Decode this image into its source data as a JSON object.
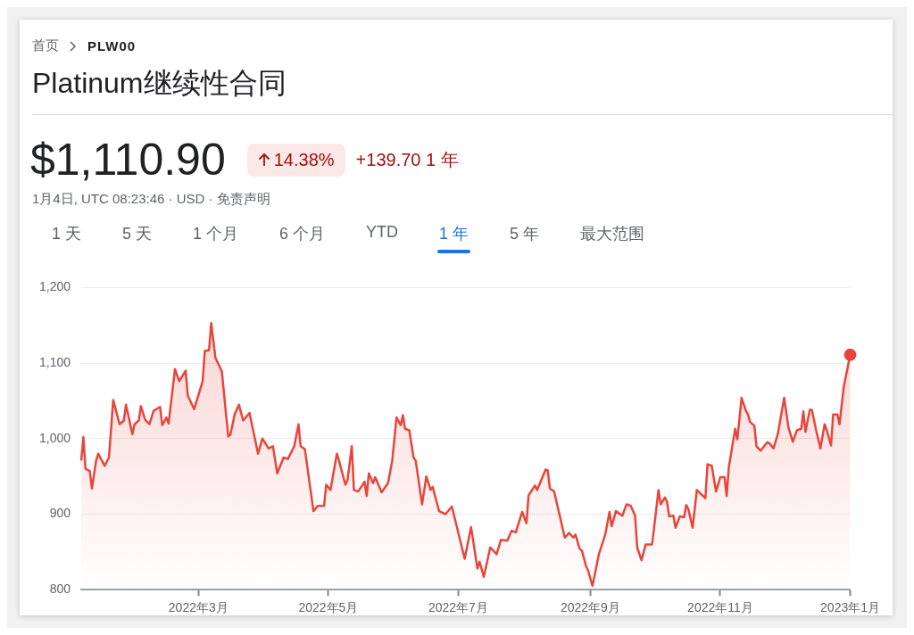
{
  "chart_data": {
    "type": "area",
    "title": "Platinum继续性合同",
    "annotations": [
      "首页",
      "PLW00",
      "$1,110.90",
      "14.38%",
      "+139.70 1 年",
      "1月4日, UTC 08:23:46 · USD · 免责声明",
      "1 天",
      "5 天",
      "1 个月",
      "6 个月",
      "YTD",
      "1 年",
      "5 年",
      "最大范围"
    ],
    "xlim": [
      "2022-01-05",
      "2023-01-01"
    ],
    "xticks": [
      {
        "value": "2022-03-01",
        "label": "2022年3月"
      },
      {
        "value": "2022-05-01",
        "label": "2022年5月"
      },
      {
        "value": "2022-07-01",
        "label": "2022年7月"
      },
      {
        "value": "2022-09-01",
        "label": "2022年9月"
      },
      {
        "value": "2022-11-01",
        "label": "2022年11月"
      },
      {
        "value": "2023-01-01",
        "label": "2023年1月"
      }
    ],
    "ylim": [
      800,
      1200
    ],
    "yticks": [
      {
        "value": 800,
        "label": "800"
      },
      {
        "value": 900,
        "label": "900"
      },
      {
        "value": 1000,
        "label": "1,000"
      },
      {
        "value": 1100,
        "label": "1,100"
      },
      {
        "value": 1200,
        "label": "1,200"
      }
    ],
    "grid": "y",
    "legend": false,
    "series": [
      {
        "color": "#e8453c",
        "x": [
          "2022-01-05",
          "2022-01-06",
          "2022-01-07",
          "2022-01-09",
          "2022-01-10",
          "2022-01-12",
          "2022-01-13",
          "2022-01-16",
          "2022-01-18",
          "2022-01-20",
          "2022-01-23",
          "2022-01-25",
          "2022-01-26",
          "2022-01-29",
          "2022-01-30",
          "2022-02-01",
          "2022-02-02",
          "2022-02-04",
          "2022-02-06",
          "2022-02-08",
          "2022-02-11",
          "2022-02-12",
          "2022-02-14",
          "2022-02-15",
          "2022-02-18",
          "2022-02-20",
          "2022-02-23",
          "2022-02-24",
          "2022-02-27",
          "2022-03-03",
          "2022-03-04",
          "2022-03-06",
          "2022-03-07",
          "2022-03-09",
          "2022-03-12",
          "2022-03-15",
          "2022-03-16",
          "2022-03-18",
          "2022-03-20",
          "2022-03-22",
          "2022-03-25",
          "2022-03-29",
          "2022-03-31",
          "2022-04-03",
          "2022-04-05",
          "2022-04-07",
          "2022-04-10",
          "2022-04-12",
          "2022-04-15",
          "2022-04-17",
          "2022-04-18",
          "2022-04-20",
          "2022-04-24",
          "2022-04-26",
          "2022-04-29",
          "2022-04-30",
          "2022-05-02",
          "2022-05-05",
          "2022-05-06",
          "2022-05-09",
          "2022-05-10",
          "2022-05-12",
          "2022-05-13",
          "2022-05-15",
          "2022-05-18",
          "2022-05-19",
          "2022-05-20",
          "2022-05-22",
          "2022-05-23",
          "2022-05-26",
          "2022-05-29",
          "2022-05-31",
          "2022-06-02",
          "2022-06-04",
          "2022-06-05",
          "2022-06-06",
          "2022-06-08",
          "2022-06-10",
          "2022-06-11",
          "2022-06-14",
          "2022-06-16",
          "2022-06-18",
          "2022-06-19",
          "2022-06-22",
          "2022-06-25",
          "2022-06-28",
          "2022-07-04",
          "2022-07-07",
          "2022-07-10",
          "2022-07-11",
          "2022-07-13",
          "2022-07-16",
          "2022-07-19",
          "2022-07-21",
          "2022-07-24",
          "2022-07-26",
          "2022-07-28",
          "2022-07-31",
          "2022-08-02",
          "2022-08-03",
          "2022-08-06",
          "2022-08-07",
          "2022-08-11",
          "2022-08-12",
          "2022-08-13",
          "2022-08-15",
          "2022-08-20",
          "2022-08-22",
          "2022-08-24",
          "2022-08-25",
          "2022-08-27",
          "2022-08-28",
          "2022-08-30",
          "2022-08-31",
          "2022-09-02",
          "2022-09-05",
          "2022-09-08",
          "2022-09-10",
          "2022-09-11",
          "2022-09-13",
          "2022-09-16",
          "2022-09-18",
          "2022-09-20",
          "2022-09-22",
          "2022-09-23",
          "2022-09-25",
          "2022-09-27",
          "2022-09-30",
          "2022-10-03",
          "2022-10-04",
          "2022-10-06",
          "2022-10-07",
          "2022-10-08",
          "2022-10-10",
          "2022-10-11",
          "2022-10-13",
          "2022-10-15",
          "2022-10-16",
          "2022-10-17",
          "2022-10-19",
          "2022-10-21",
          "2022-10-25",
          "2022-10-26",
          "2022-10-28",
          "2022-10-30",
          "2022-11-01",
          "2022-11-03",
          "2022-11-04",
          "2022-11-05",
          "2022-11-08",
          "2022-11-09",
          "2022-11-11",
          "2022-11-13",
          "2022-11-14",
          "2022-11-15",
          "2022-11-17",
          "2022-11-18",
          "2022-11-20",
          "2022-11-23",
          "2022-11-24",
          "2022-11-26",
          "2022-11-28",
          "2022-12-01",
          "2022-12-03",
          "2022-12-05",
          "2022-12-07",
          "2022-12-09",
          "2022-12-10",
          "2022-12-11",
          "2022-12-13",
          "2022-12-14",
          "2022-12-16",
          "2022-12-18",
          "2022-12-20",
          "2022-12-21",
          "2022-12-23",
          "2022-12-24",
          "2022-12-26",
          "2022-12-27",
          "2022-12-29",
          "2022-12-30",
          "2023-01-01"
        ],
        "values": [
          971,
          1002,
          960,
          957,
          934,
          971,
          980,
          964,
          975,
          1051,
          1019,
          1024,
          1045,
          1006,
          1019,
          1024,
          1043,
          1025,
          1019,
          1037,
          1042,
          1018,
          1028,
          1020,
          1092,
          1076,
          1090,
          1057,
          1039,
          1076,
          1116,
          1117,
          1153,
          1107,
          1089,
          1003,
          1005,
          1032,
          1045,
          1024,
          1034,
          980,
          1000,
          987,
          990,
          954,
          975,
          973,
          990,
          1019,
          990,
          986,
          904,
          911,
          911,
          939,
          932,
          980,
          971,
          939,
          945,
          990,
          932,
          930,
          943,
          924,
          954,
          941,
          949,
          929,
          941,
          971,
          1028,
          1018,
          1031,
          1013,
          1011,
          975,
          971,
          913,
          950,
          932,
          936,
          904,
          900,
          910,
          841,
          883,
          828,
          837,
          817,
          856,
          847,
          866,
          865,
          878,
          876,
          903,
          888,
          925,
          938,
          932,
          959,
          958,
          934,
          930,
          869,
          875,
          869,
          873,
          854,
          852,
          831,
          825,
          805,
          847,
          873,
          903,
          884,
          904,
          898,
          913,
          911,
          898,
          856,
          839,
          860,
          860,
          932,
          913,
          922,
          917,
          897,
          898,
          882,
          897,
          896,
          912,
          907,
          882,
          932,
          921,
          966,
          964,
          930,
          949,
          949,
          924,
          962,
          1013,
          999,
          1054,
          1037,
          1032,
          1022,
          1017,
          990,
          984,
          995,
          994,
          987,
          1006,
          1054,
          1015,
          996,
          1011,
          1013,
          1036,
          1009,
          1038,
          1038,
          1011,
          987,
          1019,
          1011,
          991,
          1032,
          1032,
          1019,
          1069,
          1083,
          1110.9
        ]
      }
    ]
  }
}
